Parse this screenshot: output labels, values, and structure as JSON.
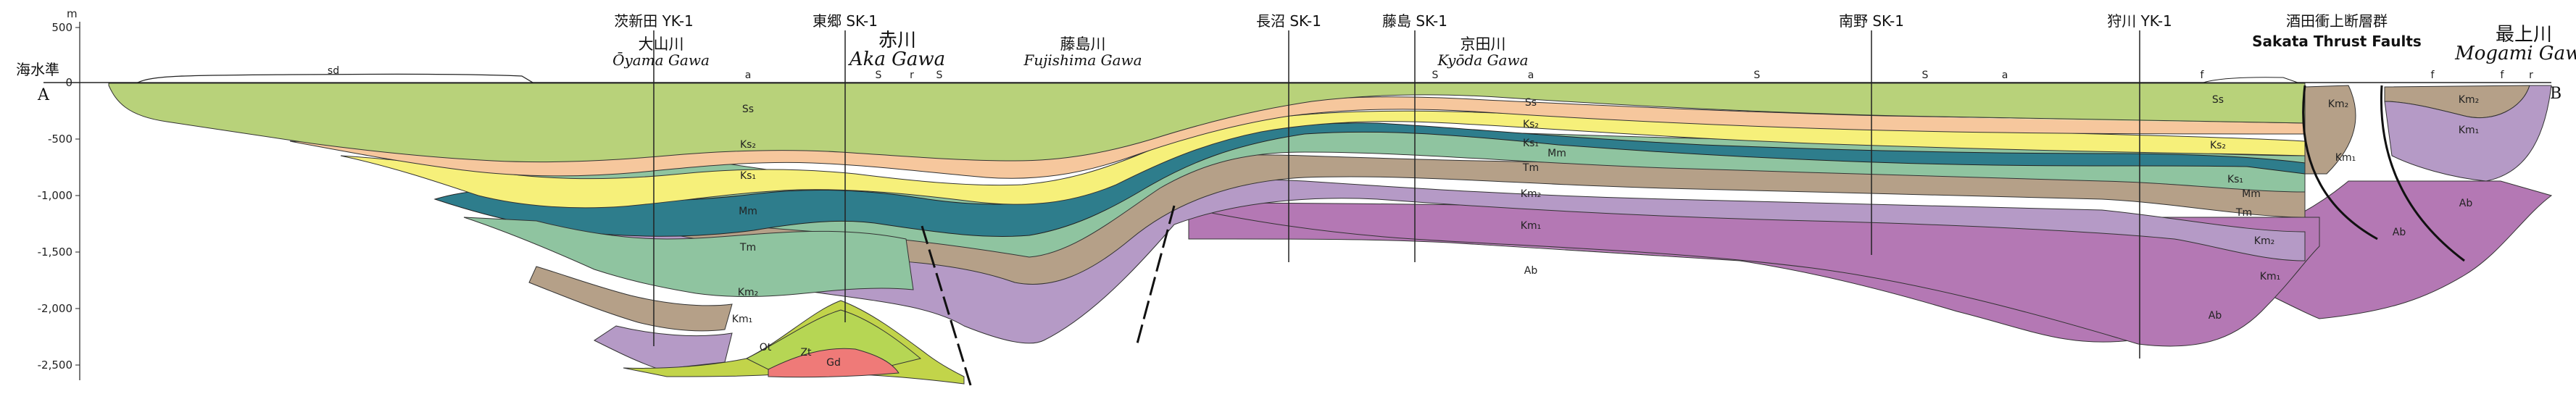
{
  "figure": {
    "sea_level_label": "海水準",
    "unit_label": "m",
    "end_left": "A",
    "end_right": "B",
    "depth_ticks": [
      {
        "value": 500,
        "label": "500"
      },
      {
        "value": 0,
        "label": "0"
      },
      {
        "value": -500,
        "label": "-500"
      },
      {
        "value": -1000,
        "label": "-1,000"
      },
      {
        "value": -1500,
        "label": "-1,500"
      },
      {
        "value": -2000,
        "label": "-2,000"
      },
      {
        "value": -2500,
        "label": "-2,500"
      }
    ]
  },
  "wells": [
    {
      "name": "茨新田 YK-1"
    },
    {
      "name": "東郷 SK-1"
    },
    {
      "name": "長沼 SK-1"
    },
    {
      "name": "藤島 SK-1"
    },
    {
      "name": "南野 SK-1"
    },
    {
      "name": "狩川 YK-1"
    }
  ],
  "rivers": [
    {
      "jp": "大山川",
      "romaji": "Ōyama Gawa"
    },
    {
      "jp": "赤川",
      "romaji": "Aka Gawa"
    },
    {
      "jp": "藤島川",
      "romaji": "Fujishima Gawa"
    },
    {
      "jp": "京田川",
      "romaji": "Kyōda Gawa"
    },
    {
      "jp": "最上川",
      "romaji": "Mogami Gawa"
    }
  ],
  "fault_group": {
    "jp": "酒田衝上断層群",
    "en": "Sakata Thrust Faults"
  },
  "surface_labels": [
    "sd",
    "a",
    "S",
    "r",
    "S",
    "S",
    "a",
    "S",
    "S",
    "a",
    "f",
    "f",
    "f",
    "r"
  ],
  "unit_labels": [
    "Ss",
    "Ks₂",
    "Ks₁",
    "Mm",
    "Tm",
    "Km₂",
    "Km₁",
    "Ot",
    "Zt",
    "Gd",
    "Ss",
    "Ks₂",
    "Ks₁",
    "Mm",
    "Tm",
    "Km₂",
    "Km₁",
    "Ab",
    "Ss",
    "Ks₂",
    "Ks₁",
    "Mm",
    "Tm",
    "Km₂",
    "Km₁",
    "Ab",
    "Km₂",
    "Km₁",
    "Ab",
    "Km₂",
    "Km₁",
    "Ab"
  ],
  "colors": {
    "Ss": "#b8d27a",
    "Ks2": "#f6c79d",
    "Ks1": "#f6f07a",
    "Mm": "#2e7d8c",
    "Tm": "#8fc4a0",
    "Km2": "#b5a088",
    "Km1": "#b59ac6",
    "Ab": "#b478b4",
    "Ot": "#c2d44a",
    "Zt": "#b6d654",
    "Gd": "#ef7a78"
  }
}
